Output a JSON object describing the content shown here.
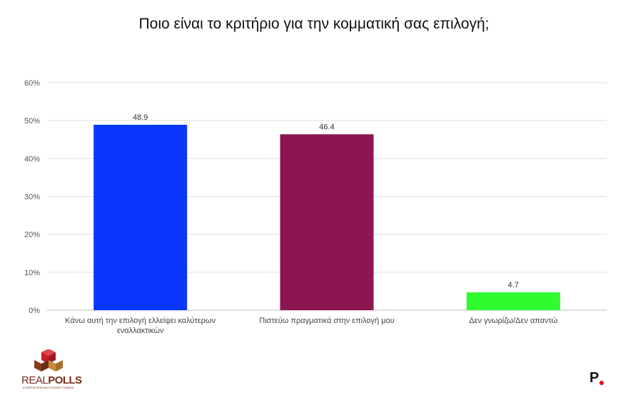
{
  "chart_data": {
    "type": "bar",
    "title": "Ποιο είναι το κριτήριο για την κομματική σας επιλογή;",
    "categories": [
      [
        "Κάνω αυτή την επιλογή ελλείψει καλύτερων",
        "εναλλακτικών"
      ],
      [
        "Πιστεύω πραγματικά στην επιλογή μου"
      ],
      [
        "Δεν γνωρίζω/Δεν απαντώ"
      ]
    ],
    "values": [
      48.9,
      46.4,
      4.7
    ],
    "value_labels": [
      "48.9",
      "46.4",
      "4.7"
    ],
    "colors": [
      "#0a37fc",
      "#8c1651",
      "#2efc2e"
    ],
    "ylim": [
      0,
      60
    ],
    "yticks": [
      0,
      10,
      20,
      30,
      40,
      50,
      60
    ],
    "ytick_labels": [
      "0%",
      "10%",
      "20%",
      "30%",
      "40%",
      "50%",
      "60%"
    ],
    "grid": true,
    "legend": "none"
  },
  "branding": {
    "left_logo_light": "REAL",
    "left_logo_bold": "POLLS",
    "left_logo_sub": "ΕΤΑΙΡΕΙΑ ΕΡΕΥΝΑΣ ΚΟΙΝΗΣ ΓΝΩΜΗΣ",
    "right_logo_letter": "P",
    "brand_color": "#7a2e1c",
    "right_dot_color": "#e2001a"
  }
}
